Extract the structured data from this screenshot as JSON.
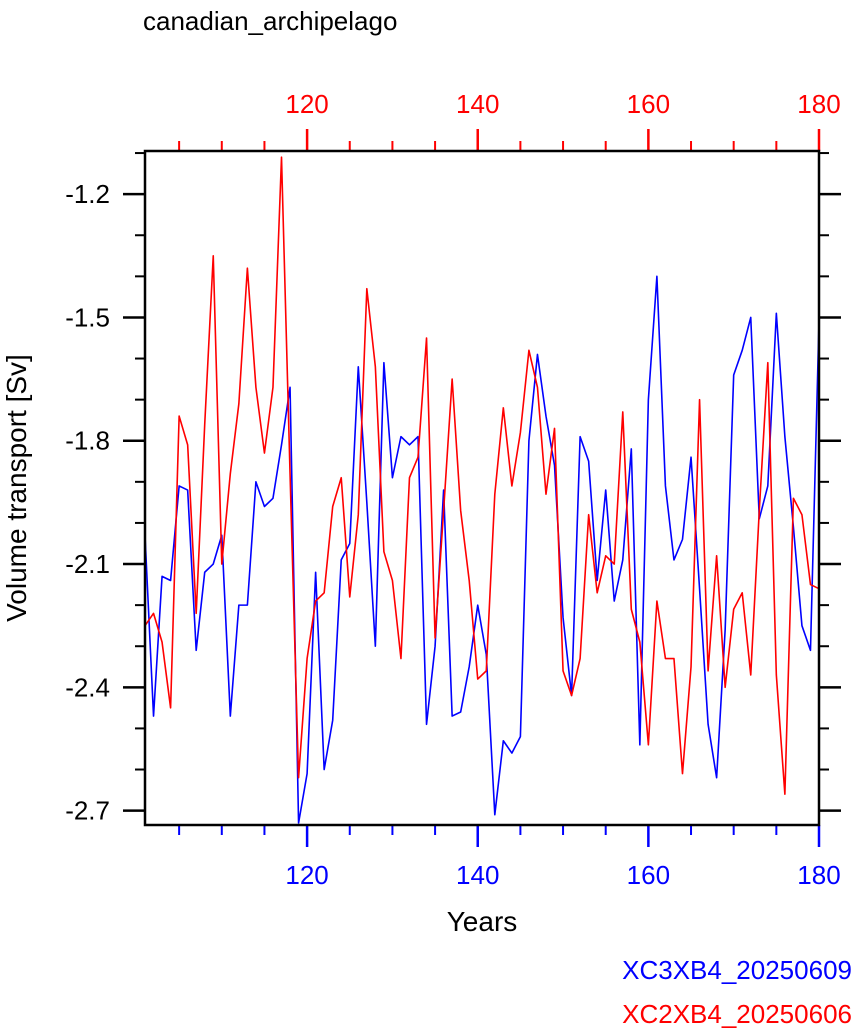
{
  "chart_data": {
    "type": "line",
    "title": "canadian_archipelago",
    "xlabel": "Years",
    "ylabel": "Volume transport [Sv]",
    "xlim": [
      101,
      180
    ],
    "ylim": [
      -2.735,
      -1.095
    ],
    "x_ticks": [
      120,
      140,
      160,
      180
    ],
    "y_ticks": [
      -2.7,
      -2.4,
      -2.1,
      -1.8,
      -1.5,
      -1.2
    ],
    "y_tick_labels": [
      "-2.7",
      "-2.4",
      "-2.1",
      "-1.8",
      "-1.5",
      "-1.2"
    ],
    "grid": false,
    "legend": "bottom-right",
    "series": [
      {
        "name": "XC3XB4_20250609",
        "color": "#0000ff",
        "axis": "bottom",
        "x": [
          101,
          102,
          103,
          104,
          105,
          106,
          107,
          108,
          109,
          110,
          111,
          112,
          113,
          114,
          115,
          116,
          117,
          118,
          119,
          120,
          121,
          122,
          123,
          124,
          125,
          126,
          127,
          128,
          129,
          130,
          131,
          132,
          133,
          134,
          135,
          136,
          137,
          138,
          139,
          140,
          141,
          142,
          143,
          144,
          145,
          146,
          147,
          148,
          149,
          150,
          151,
          152,
          153,
          154,
          155,
          156,
          157,
          158,
          159,
          160,
          161,
          162,
          163,
          164,
          165,
          166,
          167,
          168,
          169,
          170,
          171,
          172,
          173,
          174,
          175,
          176,
          177,
          178,
          179,
          180
        ],
        "values": [
          -2.03,
          -2.47,
          -2.13,
          -2.14,
          -1.91,
          -1.92,
          -2.31,
          -2.12,
          -2.1,
          -2.03,
          -2.47,
          -2.2,
          -2.2,
          -1.9,
          -1.96,
          -1.94,
          -1.81,
          -1.67,
          -2.73,
          -2.61,
          -2.12,
          -2.6,
          -2.48,
          -2.09,
          -2.05,
          -1.62,
          -1.95,
          -2.3,
          -1.61,
          -1.89,
          -1.79,
          -1.81,
          -1.79,
          -2.49,
          -2.3,
          -1.92,
          -2.47,
          -2.46,
          -2.35,
          -2.2,
          -2.32,
          -2.71,
          -2.53,
          -2.56,
          -2.52,
          -1.8,
          -1.59,
          -1.74,
          -1.86,
          -2.23,
          -2.42,
          -1.79,
          -1.85,
          -2.14,
          -1.92,
          -2.19,
          -2.09,
          -1.82,
          -2.54,
          -1.7,
          -1.4,
          -1.91,
          -2.09,
          -2.04,
          -1.84,
          -2.16,
          -2.49,
          -2.62,
          -2.26,
          -1.64,
          -1.58,
          -1.5,
          -1.99,
          -1.91,
          -1.49,
          -1.79,
          -2.01,
          -2.25,
          -2.31,
          -1.51
        ]
      },
      {
        "name": "XC2XB4_20250606",
        "color": "#ff0000",
        "axis": "top",
        "x": [
          101,
          102,
          103,
          104,
          105,
          106,
          107,
          108,
          109,
          110,
          111,
          112,
          113,
          114,
          115,
          116,
          117,
          118,
          119,
          120,
          121,
          122,
          123,
          124,
          125,
          126,
          127,
          128,
          129,
          130,
          131,
          132,
          133,
          134,
          135,
          136,
          137,
          138,
          139,
          140,
          141,
          142,
          143,
          144,
          145,
          146,
          147,
          148,
          149,
          150,
          151,
          152,
          153,
          154,
          155,
          156,
          157,
          158,
          159,
          160,
          161,
          162,
          163,
          164,
          165,
          166,
          167,
          168,
          169,
          170,
          171,
          172,
          173,
          174,
          175,
          176,
          177,
          178,
          179,
          180
        ],
        "values": [
          -2.25,
          -2.22,
          -2.29,
          -2.45,
          -1.74,
          -1.81,
          -2.22,
          -1.76,
          -1.35,
          -2.1,
          -1.88,
          -1.71,
          -1.38,
          -1.67,
          -1.83,
          -1.67,
          -1.11,
          -1.88,
          -2.62,
          -2.33,
          -2.19,
          -2.17,
          -1.96,
          -1.89,
          -2.18,
          -1.98,
          -1.43,
          -1.62,
          -2.07,
          -2.14,
          -2.33,
          -1.89,
          -1.84,
          -1.55,
          -2.28,
          -1.97,
          -1.65,
          -1.97,
          -2.14,
          -2.38,
          -2.36,
          -1.93,
          -1.72,
          -1.91,
          -1.78,
          -1.58,
          -1.67,
          -1.93,
          -1.77,
          -2.36,
          -2.42,
          -2.33,
          -1.98,
          -2.17,
          -2.08,
          -2.1,
          -1.73,
          -2.21,
          -2.29,
          -2.54,
          -2.19,
          -2.33,
          -2.33,
          -2.61,
          -2.35,
          -1.7,
          -2.36,
          -2.08,
          -2.4,
          -2.21,
          -2.17,
          -2.37,
          -1.97,
          -1.61,
          -2.37,
          -2.66,
          -1.94,
          -1.98,
          -2.15,
          -2.16
        ]
      }
    ]
  }
}
